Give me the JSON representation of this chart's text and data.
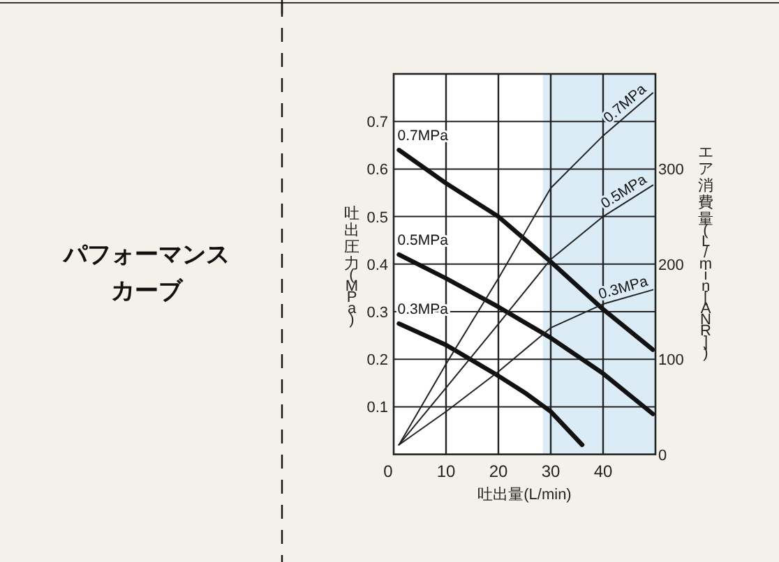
{
  "chart_data": {
    "type": "line",
    "title": "パフォーマンスカーブ",
    "xlabel": "吐出量(L/min)",
    "ylabel": "吐出圧力(MPa)",
    "y2label": "エア消費量(L/min[ANR])",
    "xlim": [
      0,
      50
    ],
    "xticks": [
      0,
      10,
      20,
      30,
      40
    ],
    "ylim": [
      0,
      0.8
    ],
    "yticks": [
      0.1,
      0.2,
      0.3,
      0.4,
      0.5,
      0.6,
      0.7
    ],
    "y2lim": [
      0,
      400
    ],
    "y2ticks": [
      0,
      100,
      200,
      300
    ],
    "grid": true,
    "marker": "none",
    "bands": [
      {
        "axis": "x",
        "from": 28.5,
        "to": 50,
        "color": "#dcecf7"
      }
    ],
    "series": [
      {
        "name": "0.7MPa",
        "color": "#111111",
        "x": [
          1,
          10,
          20,
          30,
          40,
          49.5
        ],
        "values": [
          0.64,
          0.57,
          0.5,
          0.405,
          0.305,
          0.22
        ]
      },
      {
        "name": "0.5MPa",
        "color": "#111111",
        "x": [
          1,
          10,
          20,
          30,
          40,
          49.5
        ],
        "values": [
          0.42,
          0.37,
          0.31,
          0.245,
          0.17,
          0.085
        ]
      },
      {
        "name": "0.3MPa",
        "color": "#111111",
        "x": [
          1,
          10,
          20,
          25,
          30,
          36
        ],
        "values": [
          0.275,
          0.23,
          0.165,
          0.13,
          0.09,
          0.02
        ]
      },
      {
        "name": "0.7MPa",
        "color": "#222222",
        "axis": "y2",
        "x": [
          1,
          10,
          20,
          30,
          40,
          49.5
        ],
        "values": [
          10,
          95,
          185,
          280,
          335,
          380
        ]
      },
      {
        "name": "0.5MPa",
        "color": "#222222",
        "axis": "y2",
        "x": [
          1,
          10,
          20,
          30,
          40,
          49.5
        ],
        "values": [
          10,
          70,
          137,
          205,
          250,
          283
        ]
      },
      {
        "name": "0.3MPa",
        "color": "#222222",
        "axis": "y2",
        "x": [
          1,
          10,
          20,
          30,
          40,
          49.5
        ],
        "values": [
          10,
          45,
          87,
          133,
          158,
          173
        ]
      }
    ]
  }
}
